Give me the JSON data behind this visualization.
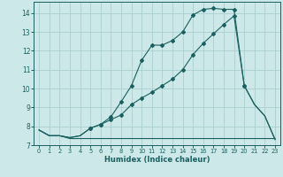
{
  "xlabel": "Humidex (Indice chaleur)",
  "bg_color": "#cce8e8",
  "grid_color": "#aacece",
  "line_color": "#1a6060",
  "xlim": [
    -0.5,
    23.5
  ],
  "ylim": [
    7,
    14.6
  ],
  "xticks": [
    0,
    1,
    2,
    3,
    4,
    5,
    6,
    7,
    8,
    9,
    10,
    11,
    12,
    13,
    14,
    15,
    16,
    17,
    18,
    19,
    20,
    21,
    22,
    23
  ],
  "yticks": [
    7,
    8,
    9,
    10,
    11,
    12,
    13,
    14
  ],
  "line1_x": [
    0,
    1,
    2,
    3,
    4,
    5,
    6,
    7,
    8,
    9,
    10,
    11,
    12,
    13,
    14,
    15,
    16,
    17,
    18,
    19,
    20,
    21,
    22,
    23
  ],
  "line1_y": [
    7.8,
    7.5,
    7.5,
    7.35,
    7.35,
    7.35,
    7.35,
    7.35,
    7.35,
    7.35,
    7.35,
    7.35,
    7.35,
    7.35,
    7.35,
    7.35,
    7.35,
    7.35,
    7.35,
    7.35,
    7.35,
    7.35,
    7.35,
    7.35
  ],
  "line2_x": [
    0,
    1,
    2,
    3,
    4,
    5,
    6,
    7,
    8,
    9,
    10,
    11,
    12,
    13,
    14,
    15,
    16,
    17,
    18,
    19,
    20,
    21,
    22,
    23
  ],
  "line2_y": [
    7.8,
    7.5,
    7.5,
    7.4,
    7.5,
    7.9,
    8.1,
    8.35,
    8.6,
    9.15,
    9.5,
    9.8,
    10.15,
    10.5,
    11.0,
    11.8,
    12.4,
    12.9,
    13.4,
    13.85,
    10.15,
    9.15,
    8.55,
    7.3
  ],
  "line3_x": [
    0,
    1,
    2,
    3,
    4,
    5,
    6,
    7,
    8,
    9,
    10,
    11,
    12,
    13,
    14,
    15,
    16,
    17,
    18,
    19,
    20,
    21,
    22,
    23
  ],
  "line3_y": [
    7.8,
    7.5,
    7.5,
    7.4,
    7.5,
    7.9,
    8.1,
    8.5,
    9.3,
    10.15,
    11.5,
    12.3,
    12.3,
    12.55,
    13.0,
    13.9,
    14.2,
    14.25,
    14.2,
    14.2,
    10.15,
    9.15,
    8.55,
    7.3
  ],
  "marker_x3": [
    5,
    6,
    7,
    8,
    9,
    10,
    11,
    12,
    13,
    14,
    15,
    16,
    17,
    18,
    19,
    20
  ],
  "marker_y3": [
    7.9,
    8.1,
    8.5,
    9.3,
    10.15,
    11.5,
    12.3,
    12.3,
    12.55,
    13.0,
    13.9,
    14.2,
    14.25,
    14.2,
    14.2,
    10.15
  ],
  "marker_x2": [
    5,
    6,
    7,
    8,
    9,
    10,
    11,
    12,
    13,
    14,
    15,
    16,
    17,
    18,
    19,
    20
  ],
  "marker_y2": [
    7.9,
    8.1,
    8.35,
    8.6,
    9.15,
    9.5,
    9.8,
    10.15,
    10.5,
    11.0,
    11.8,
    12.4,
    12.9,
    13.4,
    13.85,
    10.15
  ]
}
